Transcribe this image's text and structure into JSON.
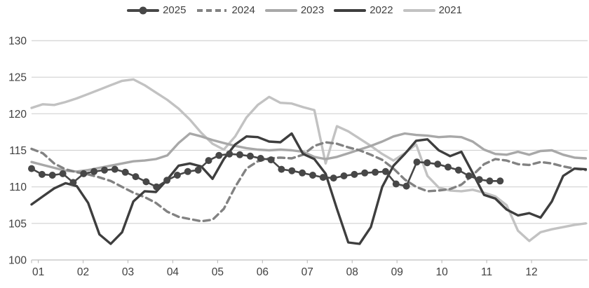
{
  "colors": {
    "grid": "#d2d2d2",
    "axis": "#bfbfbf",
    "tick_label": "#404040",
    "legend_text": "#404040",
    "background": "#ffffff"
  },
  "legend": {
    "items": [
      {
        "label": "2025"
      },
      {
        "label": "2024"
      },
      {
        "label": "2023"
      },
      {
        "label": "2022"
      },
      {
        "label": "2021"
      }
    ]
  },
  "chart_data": {
    "type": "line",
    "title": "",
    "xlabel": "",
    "ylabel": "",
    "x_tick_labels": [
      "01",
      "02",
      "03",
      "04",
      "05",
      "06",
      "07",
      "08",
      "09",
      "10",
      "11",
      "12"
    ],
    "y_tick_labels": [
      "100",
      "105",
      "110",
      "115",
      "120",
      "125",
      "130"
    ],
    "ylim": [
      100,
      130
    ],
    "y_step": 5,
    "grid": "horizontal",
    "legend_position": "top-center",
    "x_unit": "month (weekly points)",
    "series": [
      {
        "name": "2021",
        "color": "#c2c2c2",
        "style": "solid",
        "width": 3.4,
        "markers": false,
        "x_start": 0.85,
        "x_end": 13.21,
        "values": [
          120.8,
          121.3,
          121.2,
          121.6,
          122.1,
          122.7,
          123.3,
          123.9,
          124.5,
          124.7,
          123.9,
          122.9,
          121.9,
          120.7,
          119.2,
          117.4,
          115.9,
          115.1,
          116.9,
          119.5,
          121.2,
          122.3,
          121.5,
          121.4,
          120.9,
          120.5,
          113.2,
          118.3,
          117.6,
          116.6,
          115.6,
          114.5,
          113.6,
          114.6,
          115.8,
          111.5,
          109.9,
          109.5,
          109.4,
          109.6,
          109.2,
          108.7,
          107.5,
          104.0,
          102.6,
          103.8,
          104.2,
          104.5,
          104.8,
          105.0
        ]
      },
      {
        "name": "2023",
        "color": "#a8a8a8",
        "style": "solid",
        "width": 3.4,
        "markers": false,
        "x_start": 0.85,
        "x_end": 13.21,
        "values": [
          113.4,
          113.0,
          112.6,
          112.2,
          112.1,
          112.3,
          112.6,
          112.9,
          113.2,
          113.5,
          113.6,
          113.8,
          114.3,
          116.0,
          117.3,
          116.9,
          116.4,
          116.0,
          115.6,
          115.3,
          115.1,
          115.0,
          115.1,
          115.0,
          114.8,
          114.1,
          113.8,
          114.1,
          114.6,
          115.1,
          115.6,
          116.2,
          116.9,
          117.3,
          117.1,
          117.0,
          116.8,
          116.9,
          116.8,
          116.2,
          115.1,
          114.5,
          114.4,
          114.8,
          114.4,
          114.9,
          115.0,
          114.4,
          114.0,
          113.9
        ]
      },
      {
        "name": "2024",
        "color": "#828282",
        "style": "dashed",
        "width": 3.4,
        "markers": false,
        "x_start": 0.85,
        "x_end": 13.21,
        "values": [
          115.2,
          114.6,
          113.2,
          112.4,
          112.0,
          111.7,
          111.3,
          110.8,
          110.0,
          109.2,
          108.6,
          107.8,
          106.6,
          105.9,
          105.6,
          105.3,
          105.5,
          107.0,
          110.0,
          112.5,
          113.5,
          113.9,
          114.0,
          113.9,
          114.4,
          115.6,
          116.1,
          115.9,
          115.4,
          115.0,
          114.4,
          113.7,
          112.5,
          111.0,
          110.0,
          109.4,
          109.5,
          109.7,
          110.3,
          111.6,
          113.1,
          113.8,
          113.6,
          113.1,
          113.0,
          113.4,
          113.2,
          112.8,
          112.5,
          112.3
        ]
      },
      {
        "name": "2022",
        "color": "#3e3e3e",
        "style": "solid",
        "width": 3.4,
        "markers": false,
        "x_start": 0.85,
        "x_end": 13.21,
        "values": [
          107.6,
          108.7,
          109.8,
          110.5,
          110.1,
          107.8,
          103.5,
          102.2,
          103.8,
          108.0,
          109.4,
          109.3,
          111.0,
          112.9,
          113.2,
          112.8,
          111.1,
          113.8,
          115.8,
          116.9,
          116.8,
          116.2,
          116.1,
          117.3,
          114.5,
          113.8,
          111.8,
          107.0,
          102.4,
          102.2,
          104.5,
          110.0,
          112.9,
          114.5,
          116.3,
          116.5,
          115.0,
          114.2,
          114.8,
          111.9,
          108.9,
          108.4,
          106.9,
          106.1,
          106.4,
          105.8,
          108.0,
          111.5,
          112.5,
          112.4
        ]
      },
      {
        "name": "2025",
        "color": "#474747",
        "style": "solid",
        "width": 2.6,
        "markers": true,
        "marker_radius": 5,
        "x_start": 0.85,
        "x_end": 11.3,
        "values": [
          112.5,
          111.7,
          111.6,
          111.8,
          110.6,
          111.8,
          112.1,
          112.3,
          112.4,
          112.0,
          111.4,
          110.7,
          110.0,
          110.9,
          111.6,
          112.1,
          112.3,
          113.6,
          114.3,
          114.5,
          114.4,
          114.2,
          113.9,
          113.7,
          112.4,
          112.2,
          111.9,
          111.6,
          111.3,
          111.2,
          111.5,
          111.7,
          111.9,
          112.0,
          112.1,
          110.4,
          110.1,
          113.4,
          113.3,
          113.1,
          112.7,
          112.3,
          111.5,
          111.0,
          110.8,
          110.8
        ]
      }
    ]
  }
}
